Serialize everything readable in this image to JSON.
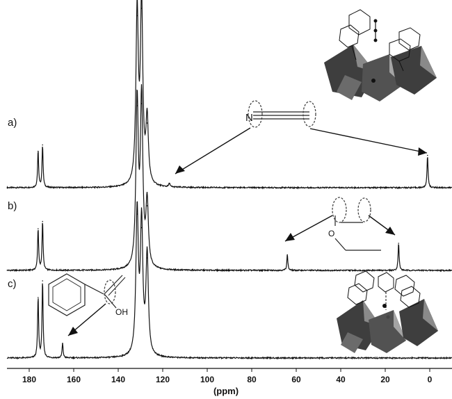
{
  "chart_data": {
    "type": "line",
    "title": "",
    "xlabel": "(ppm)",
    "ylabel": "",
    "x_reversed": true,
    "xlim": [
      190,
      -10
    ],
    "xticks": [
      180,
      160,
      140,
      120,
      100,
      80,
      60,
      40,
      20,
      0
    ],
    "grid": false,
    "legend": "none",
    "series": [
      {
        "name": "a)",
        "peaks": [
          {
            "ppm": 176.0,
            "height": 0.35
          },
          {
            "ppm": 174.0,
            "height": 0.41
          },
          {
            "ppm": 131.5,
            "height": 1.65
          },
          {
            "ppm": 129.5,
            "height": 1.72
          },
          {
            "ppm": 127.0,
            "height": 0.62
          },
          {
            "ppm": 117.0,
            "height": 0.04
          },
          {
            "ppm": 1.0,
            "height": 0.31
          }
        ]
      },
      {
        "name": "b)",
        "peaks": [
          {
            "ppm": 176.0,
            "height": 0.4
          },
          {
            "ppm": 174.0,
            "height": 0.47
          },
          {
            "ppm": 131.5,
            "height": 1.58
          },
          {
            "ppm": 129.5,
            "height": 1.6
          },
          {
            "ppm": 127.0,
            "height": 0.62
          },
          {
            "ppm": 64.0,
            "height": 0.15
          },
          {
            "ppm": 14.0,
            "height": 0.26
          }
        ]
      },
      {
        "name": "c)",
        "peaks": [
          {
            "ppm": 176.0,
            "height": 0.58
          },
          {
            "ppm": 174.0,
            "height": 0.74
          },
          {
            "ppm": 165.0,
            "height": 0.14
          },
          {
            "ppm": 131.5,
            "height": 1.38
          },
          {
            "ppm": 129.5,
            "height": 1.25
          },
          {
            "ppm": 127.0,
            "height": 0.96
          }
        ]
      }
    ],
    "annotations": {
      "nitrogen_label": "N",
      "hydroxyl_label": "OH",
      "oxygen_label": "O"
    }
  },
  "colors": {
    "trace": "#111111",
    "dashed_circle": "#444444",
    "polyhedra_dark": "#3e3e3e",
    "polyhedra_mid": "#6b6b6b",
    "polyhedra_light": "#a4a4a4"
  }
}
